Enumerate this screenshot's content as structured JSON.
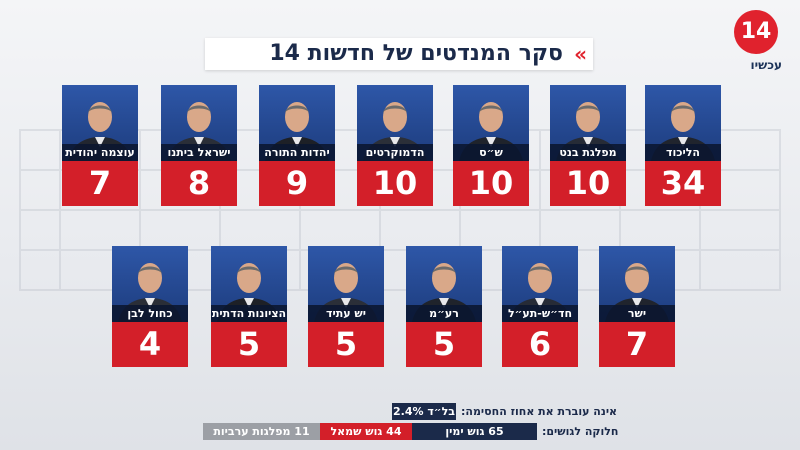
{
  "logo": {
    "number": "14",
    "word": "עכשיו"
  },
  "title": "סקר המנדטים של חדשות 14",
  "chart_data": {
    "type": "bar",
    "title": "סקר המנדטים של חדשות 14",
    "categories": [
      "הליכוד",
      "מפלגת בנט",
      "ש״ס",
      "הדמוקרטים",
      "יהדות התורה",
      "ישראל ביתנו",
      "עוצמה יהודית",
      "ישר",
      "חד״ש-תע״ל",
      "רע״מ",
      "יש עתיד",
      "הציונות הדתית",
      "כחול לבן"
    ],
    "labels": [
      "הליכוד",
      "מפלגת בנט",
      "ש״ס",
      "הדמוקרטים",
      "יהדות התורה",
      "ישראל ביתנו",
      "עוצמה יהודית",
      "ישר",
      "חד״ש-תע״ל",
      "רע״מ",
      "יש עתיד",
      "הציונות הדתית",
      "כחול לבן"
    ],
    "values": [
      34,
      10,
      10,
      10,
      9,
      8,
      7,
      7,
      6,
      5,
      5,
      5,
      4
    ],
    "value_labels": [
      "34",
      "10",
      "10",
      "10",
      "9",
      "8",
      "7",
      "7",
      "6",
      "5",
      "5",
      "5",
      "4"
    ]
  },
  "threshold": {
    "label": "אינה עוברת את אחוז החסימה:",
    "value": "בל״ד 2.4%"
  },
  "blocs": {
    "label": "חלוקה לגושים:",
    "right": "65 גוש ימין",
    "left": "44 גוש שמאל",
    "arab": "11 מפלגות ערביות"
  },
  "colors": {
    "accent": "#d31f29",
    "navy": "#1b2a4a",
    "photo_bg": "#2a4f9c"
  }
}
